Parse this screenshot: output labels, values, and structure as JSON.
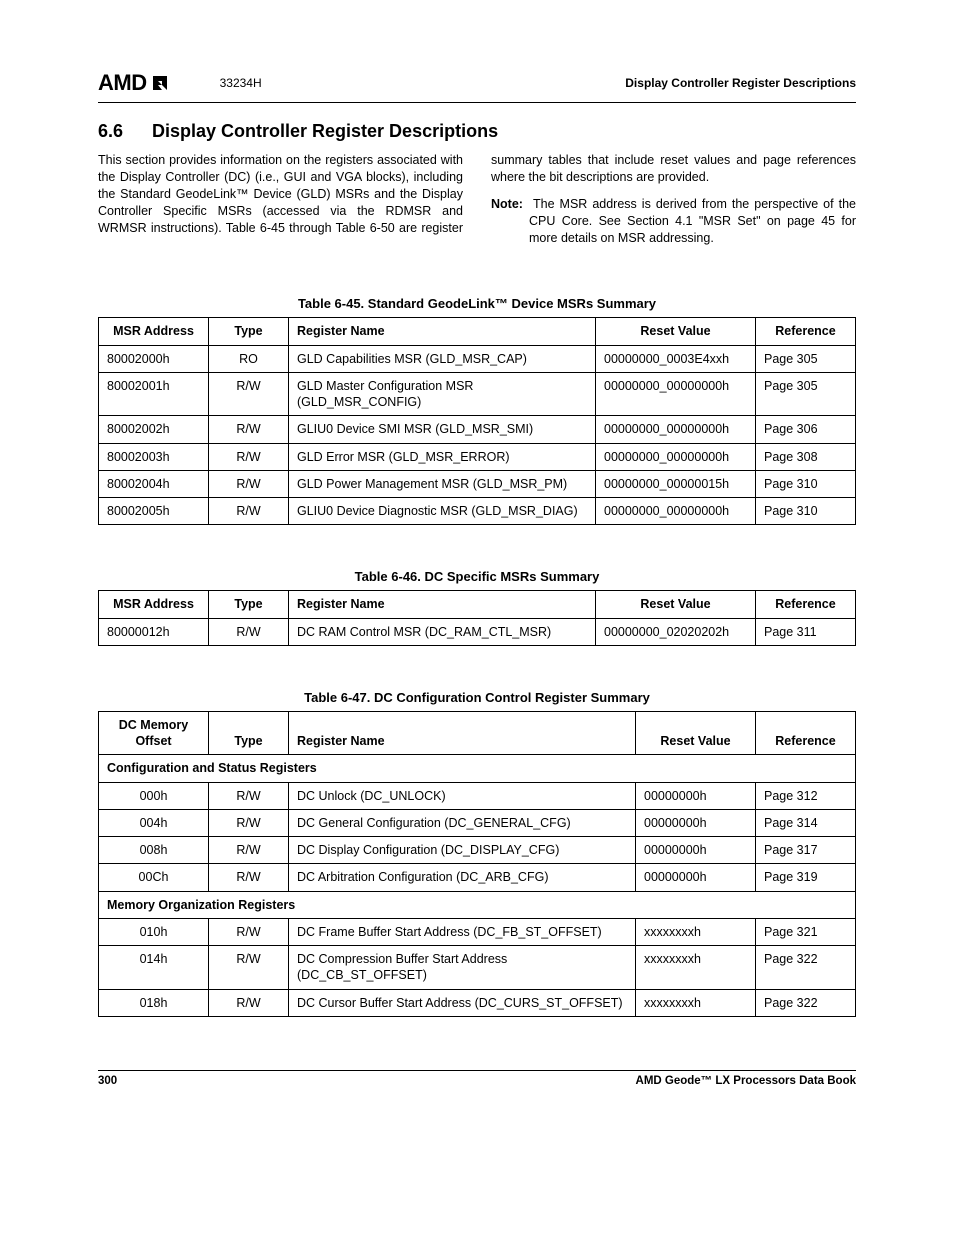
{
  "header": {
    "logo_text": "AMD",
    "doc_id": "33234H",
    "title": "Display Controller Register Descriptions"
  },
  "section": {
    "number": "6.6",
    "title": "Display Controller Register Descriptions",
    "para1": "This section provides information on the registers associated with the Display Controller (DC) (i.e., GUI and VGA blocks), including the Standard GeodeLink™ Device (GLD) MSRs and the Display Controller Specific MSRs (accessed via the RDMSR and WRMSR instructions). Table 6-45 through Table 6-50 are register summary tables that include reset values and page references where the bit descriptions are provided.",
    "note_label": "Note:",
    "note_text": "The MSR address is derived from the perspective of the CPU Core. See Section 4.1 \"MSR Set\" on page 45 for more details on MSR addressing."
  },
  "table45": {
    "caption": "Table 6-45.  Standard GeodeLink™ Device MSRs Summary",
    "headers": {
      "c1": "MSR Address",
      "c2": "Type",
      "c3": "Register Name",
      "c4": "Reset Value",
      "c5": "Reference"
    },
    "rows": [
      {
        "addr": "80002000h",
        "type": "RO",
        "name": "GLD Capabilities MSR (GLD_MSR_CAP)",
        "reset": "00000000_0003E4xxh",
        "ref": "Page 305"
      },
      {
        "addr": "80002001h",
        "type": "R/W",
        "name": "GLD Master Configuration MSR (GLD_MSR_CONFIG)",
        "reset": "00000000_00000000h",
        "ref": "Page 305"
      },
      {
        "addr": "80002002h",
        "type": "R/W",
        "name": "GLIU0 Device SMI MSR (GLD_MSR_SMI)",
        "reset": "00000000_00000000h",
        "ref": "Page 306"
      },
      {
        "addr": "80002003h",
        "type": "R/W",
        "name": "GLD Error MSR (GLD_MSR_ERROR)",
        "reset": "00000000_00000000h",
        "ref": "Page 308"
      },
      {
        "addr": "80002004h",
        "type": "R/W",
        "name": "GLD Power Management MSR (GLD_MSR_PM)",
        "reset": "00000000_00000015h",
        "ref": "Page 310"
      },
      {
        "addr": "80002005h",
        "type": "R/W",
        "name": "GLIU0 Device Diagnostic MSR (GLD_MSR_DIAG)",
        "reset": "00000000_00000000h",
        "ref": "Page 310"
      }
    ]
  },
  "table46": {
    "caption": "Table 6-46.  DC Specific MSRs Summary",
    "headers": {
      "c1": "MSR Address",
      "c2": "Type",
      "c3": "Register Name",
      "c4": "Reset Value",
      "c5": "Reference"
    },
    "rows": [
      {
        "addr": "80000012h",
        "type": "R/W",
        "name": "DC RAM Control MSR (DC_RAM_CTL_MSR)",
        "reset": "00000000_02020202h",
        "ref": "Page 311"
      }
    ]
  },
  "table47": {
    "caption": "Table 6-47.  DC Configuration Control Register Summary",
    "headers": {
      "c1": "DC Memory Offset",
      "c2": "Type",
      "c3": "Register Name",
      "c4": "Reset Value",
      "c5": "Reference"
    },
    "section1": "Configuration and Status Registers",
    "rows1": [
      {
        "addr": "000h",
        "type": "R/W",
        "name": "DC Unlock (DC_UNLOCK)",
        "reset": "00000000h",
        "ref": "Page 312"
      },
      {
        "addr": "004h",
        "type": "R/W",
        "name": "DC General Configuration (DC_GENERAL_CFG)",
        "reset": "00000000h",
        "ref": "Page 314"
      },
      {
        "addr": "008h",
        "type": "R/W",
        "name": "DC Display Configuration (DC_DISPLAY_CFG)",
        "reset": "00000000h",
        "ref": "Page 317"
      },
      {
        "addr": "00Ch",
        "type": "R/W",
        "name": "DC Arbitration Configuration (DC_ARB_CFG)",
        "reset": "00000000h",
        "ref": "Page 319"
      }
    ],
    "section2": "Memory Organization Registers",
    "rows2": [
      {
        "addr": "010h",
        "type": "R/W",
        "name": "DC Frame Buffer Start Address (DC_FB_ST_OFFSET)",
        "reset": "xxxxxxxxh",
        "ref": "Page 321"
      },
      {
        "addr": "014h",
        "type": "R/W",
        "name": "DC Compression Buffer Start Address (DC_CB_ST_OFFSET)",
        "reset": "xxxxxxxxh",
        "ref": "Page 322"
      },
      {
        "addr": "018h",
        "type": "R/W",
        "name": "DC Cursor Buffer Start Address (DC_CURS_ST_OFFSET)",
        "reset": "xxxxxxxxh",
        "ref": "Page 322"
      }
    ]
  },
  "footer": {
    "page_num": "300",
    "book": "AMD Geode™ LX Processors Data Book"
  }
}
